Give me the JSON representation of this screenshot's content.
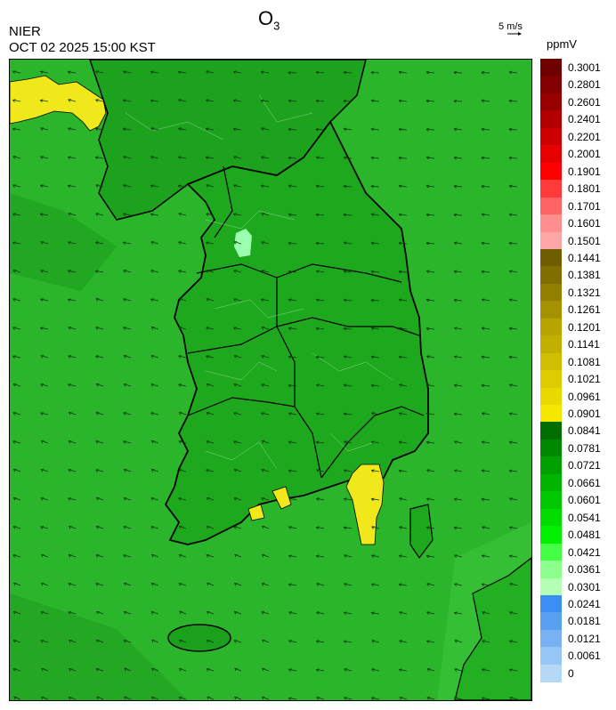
{
  "header": {
    "title_main": "O",
    "title_sub": "3",
    "org": "NIER",
    "datetime": "OCT 02 2025 15:00 KST",
    "wind_scale_label": "5 m/s",
    "unit": "ppmV"
  },
  "legend": {
    "labels": [
      "0.3001",
      "0.2801",
      "0.2601",
      "0.2401",
      "0.2201",
      "0.2001",
      "0.1901",
      "0.1801",
      "0.1701",
      "0.1601",
      "0.1501",
      "0.1441",
      "0.1381",
      "0.1321",
      "0.1261",
      "0.1201",
      "0.1141",
      "0.1081",
      "0.1021",
      "0.0961",
      "0.0901",
      "0.0841",
      "0.0781",
      "0.0721",
      "0.0661",
      "0.0601",
      "0.0541",
      "0.0481",
      "0.0421",
      "0.0361",
      "0.0301",
      "0.0241",
      "0.0181",
      "0.0121",
      "0.0061",
      "0"
    ],
    "colors": [
      "#6e0000",
      "#820000",
      "#980000",
      "#b20000",
      "#cc0000",
      "#e60000",
      "#ff0000",
      "#ff3a3a",
      "#ff6464",
      "#ff8e8e",
      "#ffa6a6",
      "#6e5e00",
      "#806e00",
      "#928000",
      "#a49200",
      "#b6a400",
      "#c2b000",
      "#d0be00",
      "#dccc00",
      "#e8da00",
      "#f4e800",
      "#006e00",
      "#008800",
      "#00a000",
      "#00b400",
      "#00c800",
      "#00dc00",
      "#00f000",
      "#44ff44",
      "#8cff8c",
      "#b4ffb4",
      "#3a8ef4",
      "#5aa0f0",
      "#78b2f2",
      "#96c6f4",
      "#b4d8f6"
    ]
  },
  "map": {
    "ocean_color": "#28b328",
    "land_color": "#1fa81f",
    "high_zone_color": "#f0e81a",
    "low_zone_color": "#9cffb0"
  }
}
